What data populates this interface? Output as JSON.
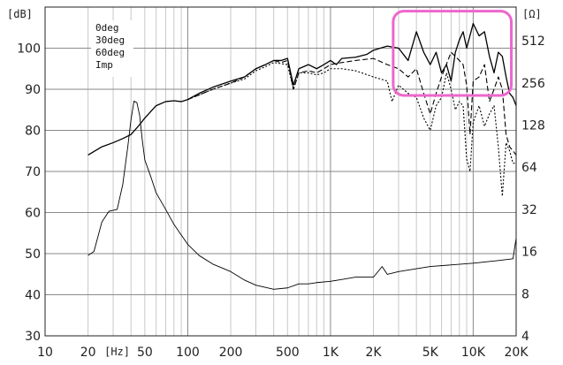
{
  "chart_data": {
    "type": "line",
    "title": "",
    "xlabel": "[Hz]",
    "ylabel_left": "[dB]",
    "ylabel_right": "[Ω]",
    "x_scale": "log",
    "xlim": [
      10,
      20000
    ],
    "ylim_left": [
      30,
      100
    ],
    "ylim_right": [
      4,
      512
    ],
    "grid": true,
    "legend_placement": "top-left",
    "x_ticks": [
      {
        "value": 10,
        "label": "10"
      },
      {
        "value": 20,
        "label": "20"
      },
      {
        "value": 50,
        "label": "50"
      },
      {
        "value": 100,
        "label": "100"
      },
      {
        "value": 200,
        "label": "200"
      },
      {
        "value": 500,
        "label": "500"
      },
      {
        "value": 1000,
        "label": "1K"
      },
      {
        "value": 2000,
        "label": "2K"
      },
      {
        "value": 5000,
        "label": "5K"
      },
      {
        "value": 10000,
        "label": "10K"
      },
      {
        "value": 20000,
        "label": "20K"
      }
    ],
    "y_ticks_left": [
      {
        "value": 30,
        "label": "30"
      },
      {
        "value": 40,
        "label": "40"
      },
      {
        "value": 50,
        "label": "50"
      },
      {
        "value": 60,
        "label": "60"
      },
      {
        "value": 70,
        "label": "70"
      },
      {
        "value": 80,
        "label": "80"
      },
      {
        "value": 90,
        "label": "90"
      },
      {
        "value": 100,
        "label": "100"
      }
    ],
    "y_ticks_right": [
      {
        "value": 4,
        "label": "4"
      },
      {
        "value": 8,
        "label": "8"
      },
      {
        "value": 16,
        "label": "16"
      },
      {
        "value": 32,
        "label": "32"
      },
      {
        "value": 64,
        "label": "64"
      },
      {
        "value": 128,
        "label": "128"
      },
      {
        "value": 256,
        "label": "256"
      },
      {
        "value": 512,
        "label": "512"
      }
    ],
    "series": [
      {
        "name": "0deg",
        "axis": "left",
        "style": "solid",
        "width": 1.3,
        "color": "#000000",
        "points": [
          [
            20,
            74
          ],
          [
            25,
            76
          ],
          [
            30,
            77
          ],
          [
            35,
            78
          ],
          [
            40,
            79
          ],
          [
            45,
            81
          ],
          [
            50,
            83
          ],
          [
            60,
            86
          ],
          [
            70,
            87
          ],
          [
            80,
            87.2
          ],
          [
            90,
            87
          ],
          [
            100,
            87.5
          ],
          [
            120,
            89
          ],
          [
            150,
            90.5
          ],
          [
            200,
            92
          ],
          [
            250,
            93
          ],
          [
            300,
            95
          ],
          [
            350,
            96
          ],
          [
            400,
            97
          ],
          [
            450,
            97
          ],
          [
            500,
            97.5
          ],
          [
            550,
            91
          ],
          [
            600,
            95
          ],
          [
            700,
            96
          ],
          [
            800,
            95
          ],
          [
            900,
            96
          ],
          [
            1000,
            97
          ],
          [
            1100,
            96
          ],
          [
            1200,
            97.5
          ],
          [
            1500,
            97.8
          ],
          [
            1800,
            98.5
          ],
          [
            2000,
            99.5
          ],
          [
            2500,
            100.5
          ],
          [
            3000,
            100
          ],
          [
            3500,
            97
          ],
          [
            4000,
            104
          ],
          [
            4500,
            99
          ],
          [
            5000,
            96
          ],
          [
            5500,
            99
          ],
          [
            6000,
            94
          ],
          [
            6500,
            96
          ],
          [
            7000,
            92
          ],
          [
            7500,
            99
          ],
          [
            8000,
            102
          ],
          [
            8500,
            104
          ],
          [
            9000,
            100
          ],
          [
            10000,
            106
          ],
          [
            11000,
            103
          ],
          [
            12000,
            104
          ],
          [
            13000,
            98
          ],
          [
            14000,
            94
          ],
          [
            15000,
            99
          ],
          [
            16000,
            98
          ],
          [
            17000,
            93
          ],
          [
            18000,
            89
          ],
          [
            19000,
            88
          ],
          [
            20000,
            86
          ]
        ]
      },
      {
        "name": "30deg",
        "axis": "left",
        "style": "dashed",
        "width": 1.1,
        "color": "#000000",
        "points": [
          [
            100,
            87.5
          ],
          [
            150,
            90
          ],
          [
            200,
            91.5
          ],
          [
            250,
            93
          ],
          [
            300,
            95
          ],
          [
            350,
            96
          ],
          [
            400,
            97
          ],
          [
            450,
            96.5
          ],
          [
            500,
            97
          ],
          [
            550,
            90
          ],
          [
            600,
            94
          ],
          [
            700,
            94.5
          ],
          [
            800,
            94
          ],
          [
            900,
            95
          ],
          [
            1000,
            96
          ],
          [
            1200,
            96.5
          ],
          [
            1500,
            97
          ],
          [
            2000,
            97.5
          ],
          [
            2500,
            96
          ],
          [
            3000,
            95
          ],
          [
            3500,
            93
          ],
          [
            4000,
            95
          ],
          [
            4500,
            89
          ],
          [
            5000,
            84
          ],
          [
            5500,
            89
          ],
          [
            6000,
            93
          ],
          [
            7000,
            99
          ],
          [
            8000,
            97
          ],
          [
            8500,
            96
          ],
          [
            9000,
            91
          ],
          [
            9500,
            79
          ],
          [
            10000,
            92
          ],
          [
            11000,
            93
          ],
          [
            12000,
            96
          ],
          [
            13000,
            87
          ],
          [
            14000,
            90
          ],
          [
            15000,
            93
          ],
          [
            16000,
            90
          ],
          [
            17000,
            79
          ],
          [
            18000,
            76
          ],
          [
            19000,
            75
          ],
          [
            20000,
            74
          ]
        ]
      },
      {
        "name": "60deg",
        "axis": "left",
        "style": "dotted",
        "width": 1.1,
        "color": "#000000",
        "points": [
          [
            100,
            87.5
          ],
          [
            150,
            90
          ],
          [
            200,
            91.5
          ],
          [
            250,
            92.5
          ],
          [
            300,
            94.5
          ],
          [
            350,
            95.5
          ],
          [
            400,
            96.5
          ],
          [
            500,
            96
          ],
          [
            550,
            90
          ],
          [
            600,
            94
          ],
          [
            700,
            94
          ],
          [
            800,
            93.5
          ],
          [
            900,
            94
          ],
          [
            1000,
            95
          ],
          [
            1200,
            95
          ],
          [
            1500,
            94.5
          ],
          [
            2000,
            93
          ],
          [
            2500,
            92
          ],
          [
            2700,
            87
          ],
          [
            3000,
            91
          ],
          [
            3500,
            89
          ],
          [
            4000,
            88
          ],
          [
            4500,
            83
          ],
          [
            5000,
            80
          ],
          [
            5500,
            86
          ],
          [
            6000,
            88
          ],
          [
            6500,
            94
          ],
          [
            7000,
            90
          ],
          [
            7500,
            85
          ],
          [
            8000,
            87
          ],
          [
            8500,
            86
          ],
          [
            9000,
            73
          ],
          [
            9500,
            70
          ],
          [
            10000,
            82
          ],
          [
            11000,
            86
          ],
          [
            12000,
            81
          ],
          [
            13000,
            84
          ],
          [
            14000,
            86
          ],
          [
            15000,
            76
          ],
          [
            16000,
            64
          ],
          [
            17000,
            77
          ],
          [
            18000,
            75
          ],
          [
            19000,
            72
          ],
          [
            20000,
            72
          ]
        ]
      },
      {
        "name": "Imp",
        "axis": "right",
        "style": "solid",
        "width": 0.9,
        "color": "#000000",
        "points": [
          [
            20,
            15
          ],
          [
            22,
            16
          ],
          [
            25,
            26
          ],
          [
            28,
            31
          ],
          [
            32,
            32
          ],
          [
            35,
            48
          ],
          [
            38,
            90
          ],
          [
            40,
            140
          ],
          [
            42,
            190
          ],
          [
            44,
            185
          ],
          [
            46,
            150
          ],
          [
            48,
            100
          ],
          [
            50,
            72
          ],
          [
            55,
            55
          ],
          [
            60,
            42
          ],
          [
            70,
            32
          ],
          [
            80,
            25
          ],
          [
            90,
            21
          ],
          [
            100,
            18
          ],
          [
            120,
            15
          ],
          [
            150,
            13
          ],
          [
            200,
            11.5
          ],
          [
            250,
            10
          ],
          [
            300,
            9.2
          ],
          [
            400,
            8.6
          ],
          [
            500,
            8.8
          ],
          [
            600,
            9.4
          ],
          [
            700,
            9.4
          ],
          [
            800,
            9.6
          ],
          [
            1000,
            9.8
          ],
          [
            1500,
            10.5
          ],
          [
            2000,
            10.5
          ],
          [
            2300,
            12.5
          ],
          [
            2500,
            11
          ],
          [
            3000,
            11.5
          ],
          [
            5000,
            12.5
          ],
          [
            10000,
            13.2
          ],
          [
            15000,
            13.8
          ],
          [
            19000,
            14.2
          ],
          [
            20000,
            20
          ]
        ]
      }
    ],
    "highlight_box": {
      "x_range": [
        2750,
        18500
      ],
      "y_range": [
        88.5,
        109
      ],
      "color": "#ee66cc"
    }
  }
}
